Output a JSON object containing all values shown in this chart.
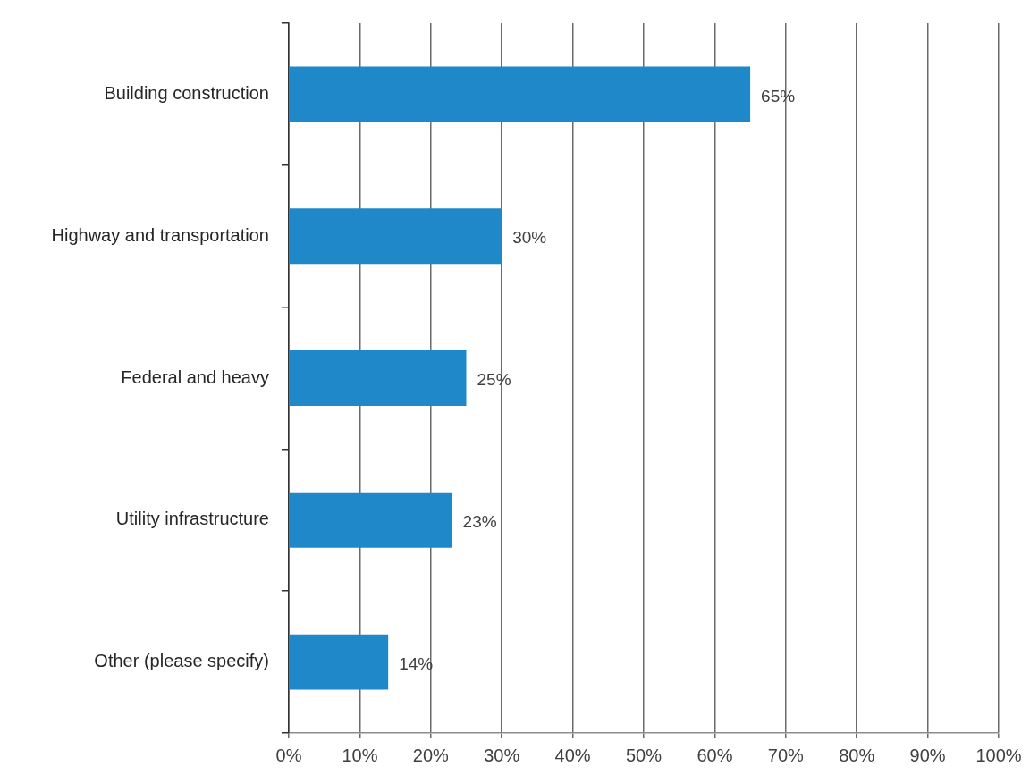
{
  "chart_data": {
    "type": "bar",
    "orientation": "horizontal",
    "categories": [
      "Building construction",
      "Highway and transportation",
      "Federal and heavy",
      "Utility infrastructure",
      "Other (please specify)"
    ],
    "values": [
      65,
      30,
      25,
      23,
      14
    ],
    "value_labels": [
      "65%",
      "30%",
      "25%",
      "23%",
      "14%"
    ],
    "color": "#1e88c8",
    "xlim": [
      0,
      100
    ],
    "xticks": [
      {
        "value": 0,
        "label": "0%"
      },
      {
        "value": 10,
        "label": "10%"
      },
      {
        "value": 20,
        "label": "20%"
      },
      {
        "value": 30,
        "label": "30%"
      },
      {
        "value": 40,
        "label": "40%"
      },
      {
        "value": 50,
        "label": "50%"
      },
      {
        "value": 60,
        "label": "60%"
      },
      {
        "value": 70,
        "label": "70%"
      },
      {
        "value": 80,
        "label": "80%"
      },
      {
        "value": 90,
        "label": "90%"
      },
      {
        "value": 100,
        "label": "100%"
      }
    ],
    "grid": "x",
    "legend": false
  }
}
